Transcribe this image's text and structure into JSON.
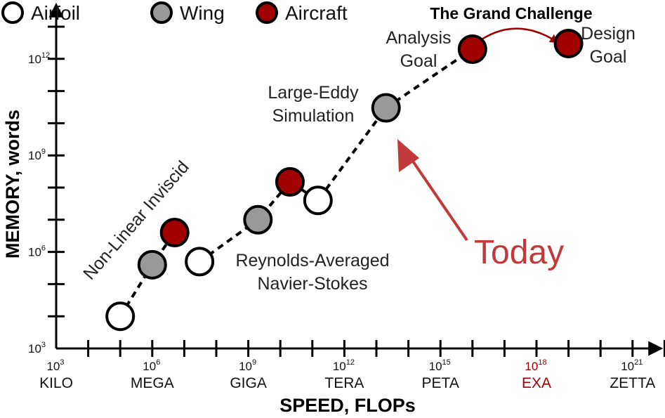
{
  "chart_data": {
    "type": "scatter",
    "xlabel": "SPEED, FLOPs",
    "ylabel": "MEMORY, words",
    "x_scale": "log",
    "y_scale": "log",
    "xlim": [
      1000.0,
      1e+23
    ],
    "ylim": [
      1000.0,
      1000000000000000.0
    ],
    "grid": false,
    "legend_position": "top-left",
    "x_ticks": [
      {
        "base": "10",
        "exp": "3",
        "name": "KILO",
        "value": 1000.0
      },
      {
        "base": "10",
        "exp": "6",
        "name": "MEGA",
        "value": 1000000.0
      },
      {
        "base": "10",
        "exp": "9",
        "name": "GIGA",
        "value": 1000000000.0
      },
      {
        "base": "10",
        "exp": "12",
        "name": "TERA",
        "value": 1000000000000.0
      },
      {
        "base": "10",
        "exp": "15",
        "name": "PETA",
        "value": 1000000000000000.0
      },
      {
        "base": "10",
        "exp": "18",
        "name": "EXA",
        "value": 1e+18,
        "highlight": true
      },
      {
        "base": "10",
        "exp": "21",
        "name": "ZETTA",
        "value": 1e+21
      }
    ],
    "y_ticks": [
      {
        "base": "10",
        "exp": "3",
        "value": 1000.0
      },
      {
        "base": "10",
        "exp": "6",
        "value": 1000000.0
      },
      {
        "base": "10",
        "exp": "9",
        "value": 1000000000.0
      },
      {
        "base": "10",
        "exp": "12",
        "value": 1000000000000.0
      }
    ],
    "legend": [
      {
        "key": "airfoil",
        "label": "Airfoil"
      },
      {
        "key": "wing",
        "label": "Wing"
      },
      {
        "key": "aircraft",
        "label": "Aircraft"
      }
    ],
    "styles": {
      "airfoil": {
        "fill": "#ffffff"
      },
      "wing": {
        "fill": "#999999"
      },
      "aircraft": {
        "fill": "#a00000"
      }
    },
    "series": [
      {
        "points": [
          {
            "x": 100000.0,
            "y": 10000.0,
            "kind": "airfoil"
          },
          {
            "x": 1000000.0,
            "y": 400000.0,
            "kind": "wing"
          },
          {
            "x": 5000000.0,
            "y": 4000000.0,
            "kind": "aircraft"
          }
        ]
      },
      {
        "points": [
          {
            "x": 30000000.0,
            "y": 500000.0,
            "kind": "airfoil"
          },
          {
            "x": 2000000000.0,
            "y": 10000000.0,
            "kind": "wing"
          },
          {
            "x": 20000000000.0,
            "y": 150000000.0,
            "kind": "aircraft"
          },
          {
            "x": 150000000000.0,
            "y": 40000000.0,
            "kind": "airfoil"
          },
          {
            "x": 20000000000000.0,
            "y": 30000000000.0,
            "kind": "wing"
          },
          {
            "x": 1e+16,
            "y": 2000000000000.0,
            "kind": "aircraft"
          }
        ]
      },
      {
        "points": [
          {
            "x": 1e+19,
            "y": 3000000000000.0,
            "kind": "aircraft"
          }
        ]
      }
    ],
    "annotations": {
      "non_linear": "Non-Linear Inviscid",
      "rans": [
        "Reynolds-Averaged",
        "Navier-Stokes"
      ],
      "les": [
        "Large-Eddy",
        "Simulation"
      ],
      "analysis": [
        "Analysis",
        "Goal"
      ],
      "design": [
        "Design",
        "Goal"
      ],
      "grand_challenge": "The Grand Challenge",
      "today": "Today"
    },
    "colors": {
      "axis": "#000000",
      "accent": "#a00000",
      "today": "#c0393b",
      "connector": "#000000"
    }
  }
}
